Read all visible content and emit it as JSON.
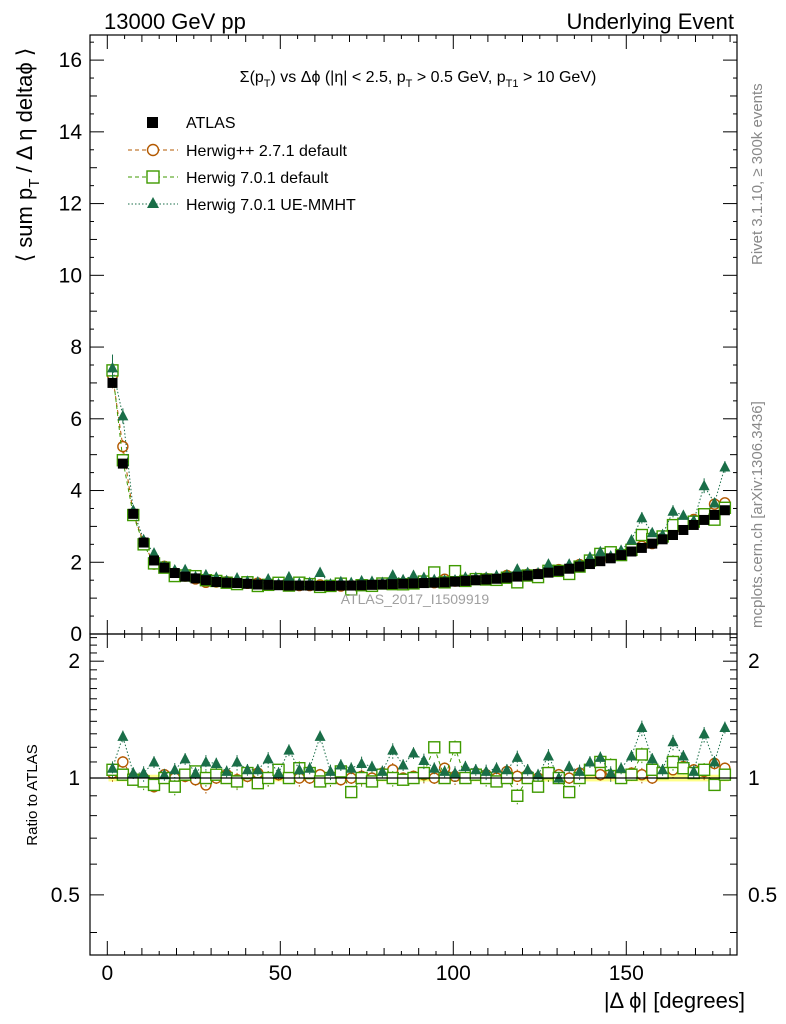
{
  "header": {
    "left": "13000 GeV pp",
    "right": "Underlying Event"
  },
  "plot_title": {
    "sigma": "Σ(p",
    "t1": "T",
    "mid": ") vs Δϕ (|η| < 2.5, p",
    "t2": "T",
    "mid2": " > 0.5 GeV, p",
    "t3": "T1",
    "end": " > 10 GeV)"
  },
  "ylabel": {
    "a": "⟨ sum p",
    "sub": "T",
    "b": " / Δ η deltaϕ ⟩"
  },
  "ratio_ylabel": "Ratio to ATLAS",
  "xlabel": "|Δ ϕ| [degrees]",
  "watermark": "ATLAS_2017_I1509919",
  "side_top": "Rivet 3.1.10, ≥ 300k events",
  "side_bottom": "mcplots.cern.ch [arXiv:1306.3436]",
  "legend": [
    {
      "label": "ATLAS",
      "marker": "filled-square"
    },
    {
      "label": "Herwig++ 2.7.1 default",
      "marker": "open-circle"
    },
    {
      "label": "Herwig 7.0.1 default",
      "marker": "open-square"
    },
    {
      "label": "Herwig 7.0.1 UE-MMHT",
      "marker": "filled-triangle"
    }
  ],
  "colors": {
    "data": "#000000",
    "herwigpp": "#b35900",
    "herwig7": "#3f9a00",
    "ue_mmht": "#1a6e48",
    "band": "#ffff88"
  },
  "chart_data": {
    "type": "scatter",
    "xlim": [
      -5,
      182
    ],
    "ylim": [
      0,
      16.7
    ],
    "ratio_ylim": [
      0.35,
      2.35
    ],
    "xticks": [
      0,
      50,
      100,
      150
    ],
    "yticks": [
      0,
      2,
      4,
      6,
      8,
      10,
      12,
      14,
      16
    ],
    "ratio_yticks": [
      0.5,
      1,
      2
    ],
    "x": [
      1.5,
      4.5,
      7.5,
      10.5,
      13.5,
      16.5,
      19.5,
      22.5,
      25.5,
      28.5,
      31.5,
      34.5,
      37.5,
      40.5,
      43.5,
      46.5,
      49.5,
      52.5,
      55.5,
      58.5,
      61.5,
      64.5,
      67.5,
      70.5,
      73.5,
      76.5,
      79.5,
      82.5,
      85.5,
      88.5,
      91.5,
      94.5,
      97.5,
      100.5,
      103.5,
      106.5,
      109.5,
      112.5,
      115.5,
      118.5,
      121.5,
      124.5,
      127.5,
      130.5,
      133.5,
      136.5,
      139.5,
      142.5,
      145.5,
      148.5,
      151.5,
      154.5,
      157.5,
      160.5,
      163.5,
      166.5,
      169.5,
      172.5,
      175.5,
      178.5
    ],
    "series": [
      {
        "name": "ATLAS",
        "values": [
          7.0,
          4.75,
          3.35,
          2.55,
          2.05,
          1.85,
          1.7,
          1.6,
          1.55,
          1.5,
          1.45,
          1.43,
          1.42,
          1.4,
          1.38,
          1.37,
          1.36,
          1.35,
          1.35,
          1.35,
          1.34,
          1.34,
          1.35,
          1.35,
          1.36,
          1.37,
          1.38,
          1.39,
          1.4,
          1.41,
          1.42,
          1.43,
          1.44,
          1.46,
          1.48,
          1.5,
          1.52,
          1.54,
          1.57,
          1.6,
          1.63,
          1.67,
          1.71,
          1.76,
          1.82,
          1.88,
          1.95,
          2.03,
          2.11,
          2.2,
          2.3,
          2.4,
          2.52,
          2.64,
          2.76,
          2.9,
          3.04,
          3.18,
          3.32,
          3.45
        ]
      },
      {
        "name": "Herwig++ 2.7.1 default",
        "ratios": [
          1.03,
          1.1,
          1.0,
          1.0,
          0.95,
          1.02,
          1.0,
          1.01,
          0.99,
          0.96,
          1.0,
          1.02,
          0.99,
          1.01,
          1.03,
          1.0,
          1.02,
          1.0,
          1.0,
          1.0,
          1.02,
          1.0,
          0.99,
          1.0,
          1.01,
          1.0,
          1.03,
          1.05,
          1.0,
          1.01,
          1.02,
          1.0,
          1.06,
          1.01,
          1.0,
          1.03,
          1.02,
          1.0,
          1.04,
          1.01,
          1.02,
          1.0,
          1.03,
          1.02,
          1.0,
          1.03,
          1.05,
          1.02,
          1.04,
          1.01,
          1.03,
          1.02,
          1.0,
          1.03,
          1.05,
          1.07,
          1.05,
          1.04,
          1.09,
          1.06
        ]
      },
      {
        "name": "Herwig 7.0.1 default",
        "ratios": [
          1.05,
          1.02,
          0.99,
          0.98,
          0.96,
          1.0,
          0.95,
          1.02,
          1.04,
          1.0,
          1.02,
          1.0,
          0.98,
          1.03,
          0.97,
          1.0,
          1.05,
          1.0,
          1.06,
          1.03,
          0.98,
          1.0,
          1.04,
          0.92,
          1.0,
          0.98,
          1.02,
          1.0,
          0.99,
          1.0,
          1.03,
          1.2,
          1.0,
          1.2,
          1.0,
          1.02,
          1.0,
          0.98,
          1.0,
          0.9,
          1.0,
          0.95,
          1.03,
          1.0,
          0.92,
          1.0,
          1.05,
          1.1,
          1.08,
          1.0,
          1.02,
          1.15,
          1.05,
          1.03,
          1.1,
          1.06,
          1.03,
          1.05,
          0.96,
          1.02
        ]
      },
      {
        "name": "Herwig 7.0.1 UE-MMHT",
        "ratios": [
          1.06,
          1.28,
          1.03,
          1.03,
          1.1,
          1.02,
          1.05,
          1.12,
          1.03,
          1.1,
          1.09,
          1.04,
          1.1,
          1.05,
          1.05,
          1.12,
          1.03,
          1.18,
          1.05,
          1.06,
          1.28,
          1.04,
          1.08,
          1.06,
          1.09,
          1.07,
          1.04,
          1.18,
          1.08,
          1.16,
          1.11,
          1.06,
          1.04,
          1.03,
          1.07,
          1.05,
          1.04,
          1.06,
          1.05,
          1.13,
          1.05,
          1.02,
          1.14,
          1.0,
          1.07,
          1.04,
          1.1,
          1.13,
          1.03,
          1.06,
          1.14,
          1.35,
          1.12,
          1.05,
          1.24,
          1.14,
          1.04,
          1.3,
          1.1,
          1.35
        ]
      }
    ]
  }
}
